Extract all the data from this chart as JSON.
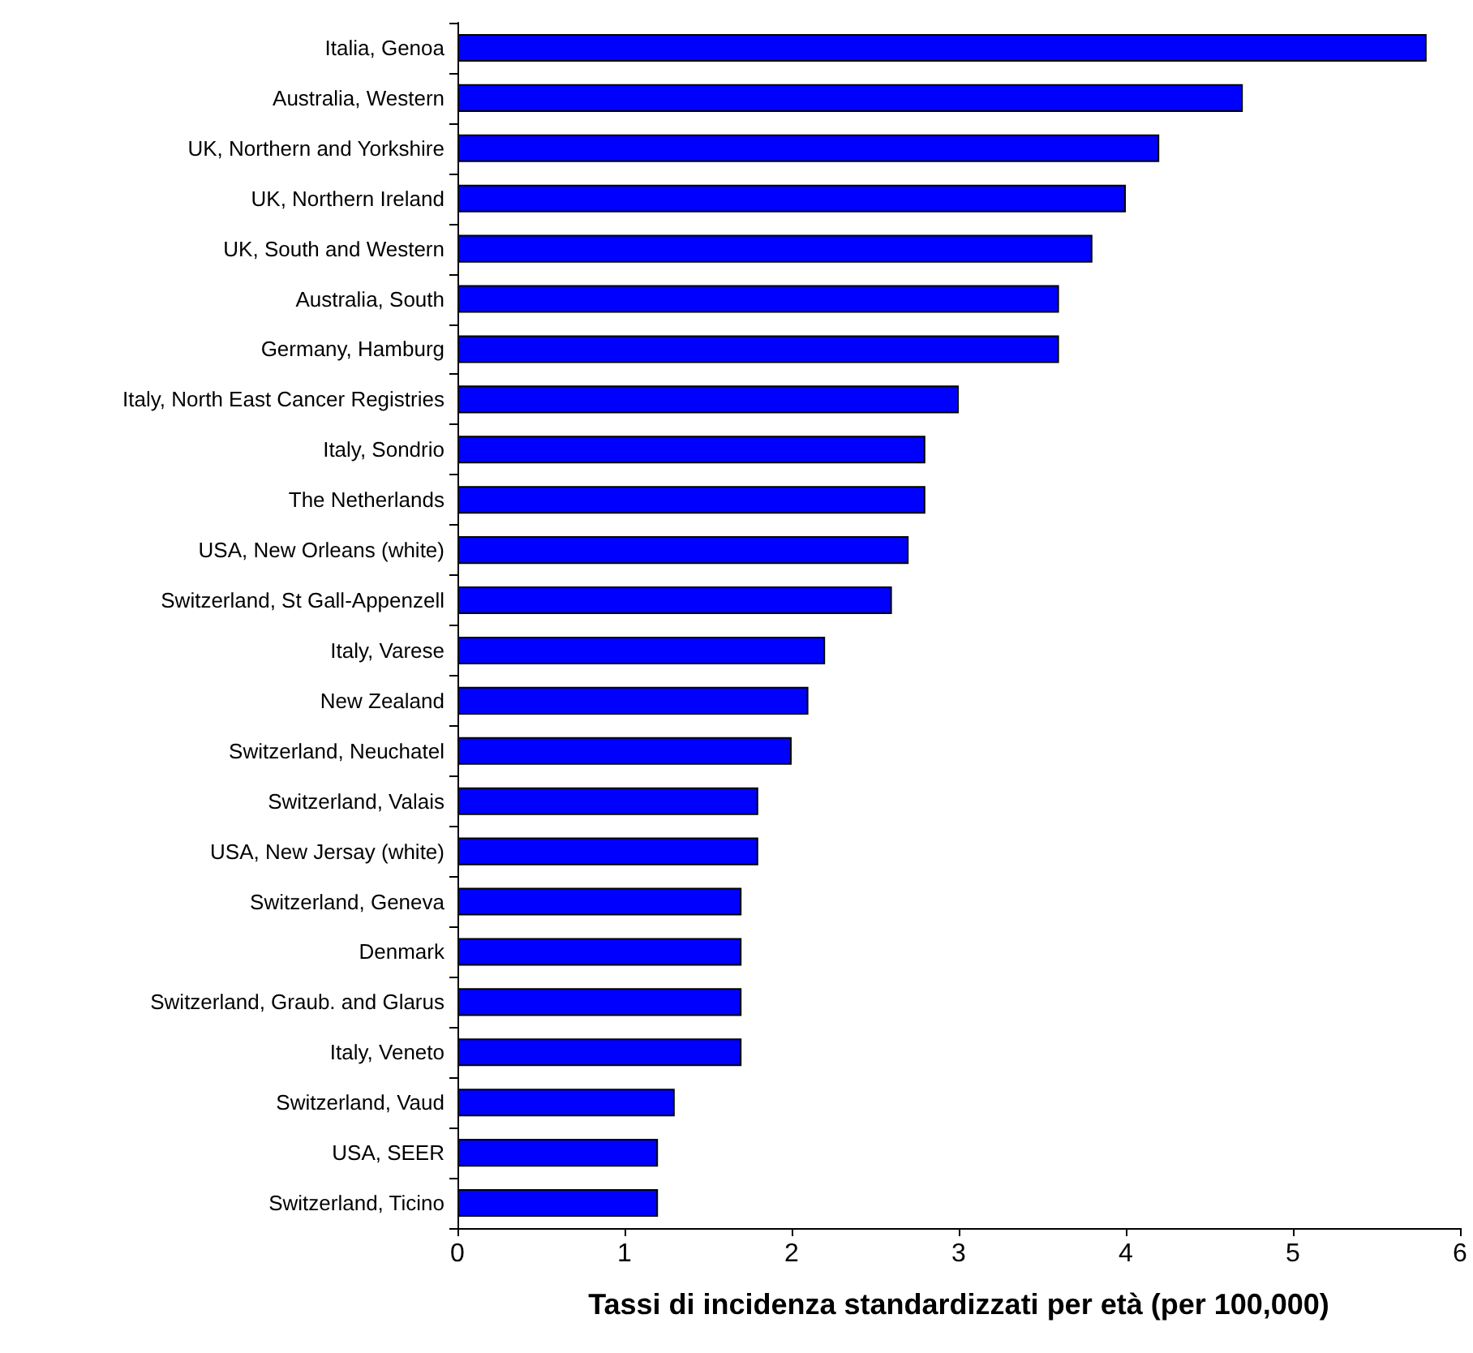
{
  "chart_data": {
    "type": "bar",
    "orientation": "horizontal",
    "xlabel": "Tassi di incidenza standardizzati per età (per 100,000)",
    "categories": [
      "Italia, Genoa",
      "Australia, Western",
      "UK, Northern and Yorkshire",
      "UK, Northern Ireland",
      "UK, South and Western",
      "Australia, South",
      "Germany, Hamburg",
      "Italy, North East Cancer Registries",
      "Italy, Sondrio",
      "The Netherlands",
      "USA, New Orleans (white)",
      "Switzerland, St Gall-Appenzell",
      "Italy, Varese",
      "New Zealand",
      "Switzerland, Neuchatel",
      "Switzerland, Valais",
      "USA, New Jersay (white)",
      "Switzerland, Geneva",
      "Denmark",
      "Switzerland, Graub. and Glarus",
      "Italy, Veneto",
      "Switzerland, Vaud",
      "USA, SEER",
      "Switzerland, Ticino"
    ],
    "values": [
      5.8,
      4.7,
      4.2,
      4.0,
      3.8,
      3.6,
      3.6,
      3.0,
      2.8,
      2.8,
      2.7,
      2.6,
      2.2,
      2.1,
      2.0,
      1.8,
      1.8,
      1.7,
      1.7,
      1.7,
      1.7,
      1.3,
      1.2,
      1.2
    ],
    "color": "#0000ff",
    "xlim": [
      0,
      6
    ],
    "xticks": [
      0,
      1,
      2,
      3,
      4,
      5,
      6
    ],
    "grid": false
  }
}
